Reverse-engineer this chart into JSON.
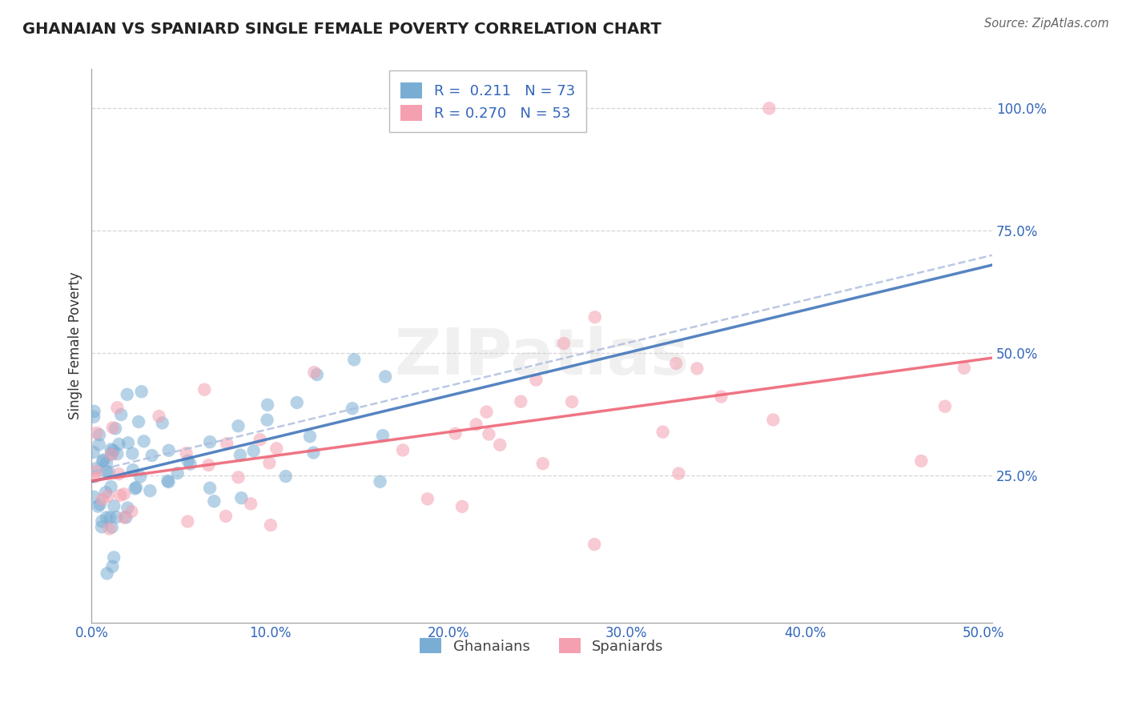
{
  "title": "GHANAIAN VS SPANIARD SINGLE FEMALE POVERTY CORRELATION CHART",
  "source": "Source: ZipAtlas.com",
  "ylabel": "Single Female Poverty",
  "legend_label1": "Ghanaians",
  "legend_label2": "Spaniards",
  "R1": 0.211,
  "N1": 73,
  "R2": 0.27,
  "N2": 53,
  "color1": "#7AADD4",
  "color2": "#F4A0B0",
  "trend1_color": "#4477BB",
  "trend2_color": "#EE6677",
  "trend_dash_color": "#AABBDD",
  "xlim": [
    0.0,
    0.505
  ],
  "ylim": [
    -0.05,
    1.08
  ],
  "xtick_vals": [
    0.0,
    0.1,
    0.2,
    0.3,
    0.4,
    0.5
  ],
  "ytick_vals": [
    0.25,
    0.5,
    0.75,
    1.0
  ],
  "background_color": "#FFFFFF",
  "watermark": "ZIPatlas",
  "watermark_color": "#CCCCCC",
  "title_color": "#222222",
  "axis_tick_color": "#3366BB",
  "source_color": "#666666",
  "grid_color": "#CCCCCC",
  "ylabel_color": "#333333"
}
